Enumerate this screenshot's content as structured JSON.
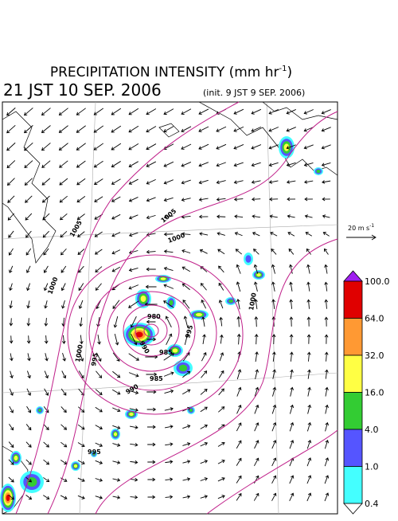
{
  "title": {
    "text": "PRECIPITATION INTENSITY (mm hr",
    "superscript": "-1",
    "suffix": ")"
  },
  "valid_time": "21 JST 10 SEP. 2006",
  "init_time": "(init. 9 JST 9 SEP. 2006)",
  "vector_scale": {
    "text": "20 m s",
    "superscript": "-1"
  },
  "colorbar": {
    "labels": [
      "100.0",
      "64.0",
      "32.0",
      "16.0",
      "4.0",
      "1.0",
      "0.4"
    ],
    "colors": [
      "#a020f0",
      "#e00000",
      "#ff9933",
      "#ffff44",
      "#33cc33",
      "#5555ff",
      "#44ffff",
      "#ffffff"
    ]
  },
  "isobar_labels": [
    "1005",
    "1000",
    "1005",
    "1000",
    "1000",
    "995",
    "990",
    "985",
    "980",
    "985",
    "990",
    "995",
    "1000",
    "995"
  ]
}
